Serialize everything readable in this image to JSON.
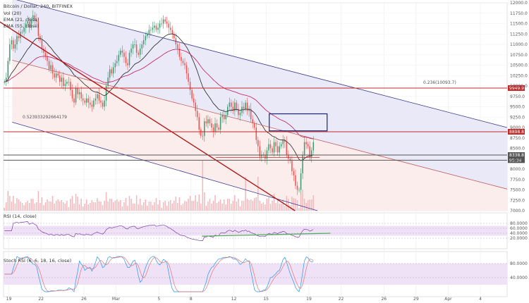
{
  "chart_data": {
    "type": "candlestick",
    "header": {
      "title": "Bitcoin / Dollar, 240, BITFINEX",
      "indicators": [
        "Vol (20)",
        "EMA (21, close)",
        "EMA (55, close)"
      ]
    },
    "price_axis": {
      "min": 7000,
      "max": 12000,
      "ticks": [
        12000,
        11750,
        11500,
        11250,
        11000,
        10750,
        10500,
        10250,
        10000,
        9750,
        9500,
        9250,
        9000,
        8750,
        8500,
        8250,
        8000,
        7750,
        7500,
        7250,
        7000
      ],
      "tick_labels": [
        "12000.0",
        "11750.0",
        "11500.0",
        "11250.0",
        "11000.0",
        "10750.0",
        "10500.0",
        "10250.0",
        "10000.0",
        "9750.0",
        "9500.0",
        "9250.0",
        "9000.0",
        "8750.0",
        "8500.0",
        "8250.0",
        "8000.0",
        "7750.0",
        "7500.0",
        "7250.0",
        "7000.0"
      ]
    },
    "time_axis": {
      "labels": [
        "19",
        "22",
        "26",
        "Mar",
        "5",
        "8",
        "12",
        "15",
        "19",
        "22",
        "26",
        "29",
        "Apr",
        "4"
      ],
      "positions": [
        0.5,
        3.5,
        7.5,
        10.5,
        14.5,
        17.5,
        21.5,
        24.5,
        28.5,
        31.5,
        35.5,
        38.5,
        41.5,
        44.5
      ],
      "bars_per_day": 6,
      "max_day": 47
    },
    "candles_close": [
      10100,
      10200,
      10600,
      11000,
      11100,
      10900,
      11000,
      11200,
      11150,
      11300,
      11300,
      11400,
      11500,
      11550,
      11400,
      11600,
      11700,
      11600,
      11550,
      11200,
      11100,
      10900,
      10800,
      10700,
      10600,
      10400,
      10500,
      10300,
      10200,
      10300,
      10250,
      10100,
      10200,
      10000,
      10050,
      10100,
      10100,
      9900,
      9700,
      9600,
      9950,
      9800,
      9850,
      9700,
      9650,
      9600,
      9700,
      9600,
      9550,
      9500,
      9650,
      9700,
      9800,
      9650,
      9600,
      9500,
      9650,
      10000,
      10200,
      10400,
      10300,
      10450,
      10550,
      10600,
      10750,
      10850,
      10800,
      10700,
      10550,
      10500,
      10800,
      10900,
      11000,
      11000,
      10800,
      10750,
      10900,
      11000,
      11100,
      11200,
      11250,
      11350,
      11350,
      11400,
      11450,
      11350,
      11400,
      11500,
      11500,
      11600,
      11550,
      11500,
      11400,
      11350,
      11250,
      11150,
      11000,
      10900,
      10700,
      10600,
      10550,
      10500,
      10300,
      10100,
      9900,
      9700,
      9600,
      9400,
      9250,
      8950,
      8800,
      8800,
      9150,
      9100,
      9200,
      9100,
      9000,
      8900,
      9100,
      9000,
      8950,
      9250,
      9300,
      9200,
      9300,
      9500,
      9600,
      9500,
      9400,
      9600,
      9450,
      9300,
      9350,
      9500,
      9450,
      9600,
      9400,
      9450,
      9200,
      9100,
      9000,
      8700,
      8550,
      8300,
      8350,
      8350,
      8250,
      8450,
      8600,
      8500,
      8400,
      8650,
      8550,
      8400,
      8550,
      8600,
      8700,
      8650,
      8350,
      8250,
      8200,
      7950,
      7850,
      7600,
      7500,
      7500,
      7900,
      8350,
      8650,
      8600,
      8550,
      8300,
      8450,
      8650
    ],
    "lines": [
      {
        "kind": "channel-upper",
        "color": "#3a3a8c",
        "points": [
          [
            0.8,
            12100
          ],
          [
            47,
            9000
          ]
        ]
      },
      {
        "kind": "channel-lower",
        "color": "#3a3a8c",
        "points": [
          [
            0.8,
            9130
          ],
          [
            29.3,
            7000
          ]
        ]
      },
      {
        "kind": "channel-mid",
        "color": "#c06060",
        "points": [
          [
            0.8,
            10620
          ],
          [
            47,
            7520
          ]
        ]
      },
      {
        "kind": "trendline",
        "color": "#b01818",
        "points": [
          [
            -1,
            11650
          ],
          [
            27.2,
            7000
          ]
        ]
      },
      {
        "kind": "horizontal",
        "color": "#c62828",
        "price": 9949.9,
        "label": "9949.9"
      },
      {
        "kind": "horizontal",
        "color": "#c62828",
        "price": 8898.8,
        "label": "8898.8"
      },
      {
        "kind": "horizontal",
        "color": "#555555",
        "price": 8338.8,
        "label": "8338.8"
      },
      {
        "kind": "horizontal",
        "color": "#555555",
        "price": 8215,
        "label": "95:34"
      },
      {
        "kind": "segment",
        "color": "#c62828",
        "points": [
          [
            19.8,
            8280
          ],
          [
            29.5,
            8280
          ]
        ]
      }
    ],
    "fib_label": {
      "text": "0.236(10093.7)",
      "price": 10093.7,
      "day": 44.5
    },
    "channel_label": {
      "text": "0.523933292664179",
      "price": 9130,
      "day": 1.6
    },
    "target_box": {
      "day_from": 24.8,
      "day_to": 30.2,
      "price_from": 8920,
      "price_to": 9330,
      "color": "#1a237e"
    },
    "rsi": {
      "title": "RSI (14, close)",
      "min": 0,
      "max": 100,
      "ticks": [
        80,
        60,
        40,
        20
      ],
      "tick_labels": [
        "80.0000",
        "60.0000",
        "40.0000",
        "20.0000"
      ],
      "divergence_line": {
        "color": "#4caf50",
        "points": [
          [
            18.5,
            28
          ],
          [
            30.5,
            40
          ]
        ]
      }
    },
    "stoch_rsi": {
      "title": "Stoch RSI (6, 6, 18, 16, close)",
      "min": 0,
      "max": 100,
      "ticks": [
        80,
        40
      ],
      "tick_labels": [
        "80.0000",
        "40.0000"
      ]
    },
    "colors": {
      "up": "#3d9970",
      "down": "#ef5350",
      "ema21": "#222222",
      "ema55": "#c2185b",
      "vol": "#f4b8bc"
    }
  }
}
